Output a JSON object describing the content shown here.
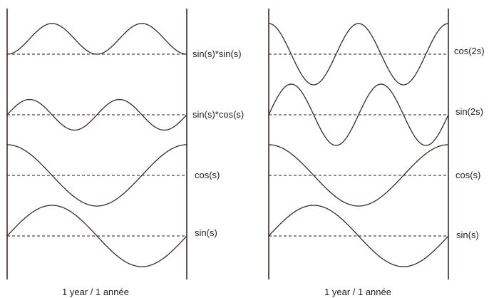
{
  "panels": [
    {
      "id": "left",
      "caption": "1 year  /  1 année",
      "curves": [
        {
          "label": "sin(s)*sin(s)",
          "fn": "sin2"
        },
        {
          "label": "sin(s)*cos(s)",
          "fn": "sincos"
        },
        {
          "label": "cos(s)",
          "fn": "cos"
        },
        {
          "label": "sin(s)",
          "fn": "sin"
        }
      ]
    },
    {
      "id": "right",
      "caption": "1 year  /  1 année",
      "curves": [
        {
          "label": "cos(2s)",
          "fn": "cos2"
        },
        {
          "label": "sin(2s)",
          "fn": "sin2s"
        },
        {
          "label": "cos(s)",
          "fn": "cos"
        },
        {
          "label": "sin(s)",
          "fn": "sin"
        }
      ]
    }
  ]
}
